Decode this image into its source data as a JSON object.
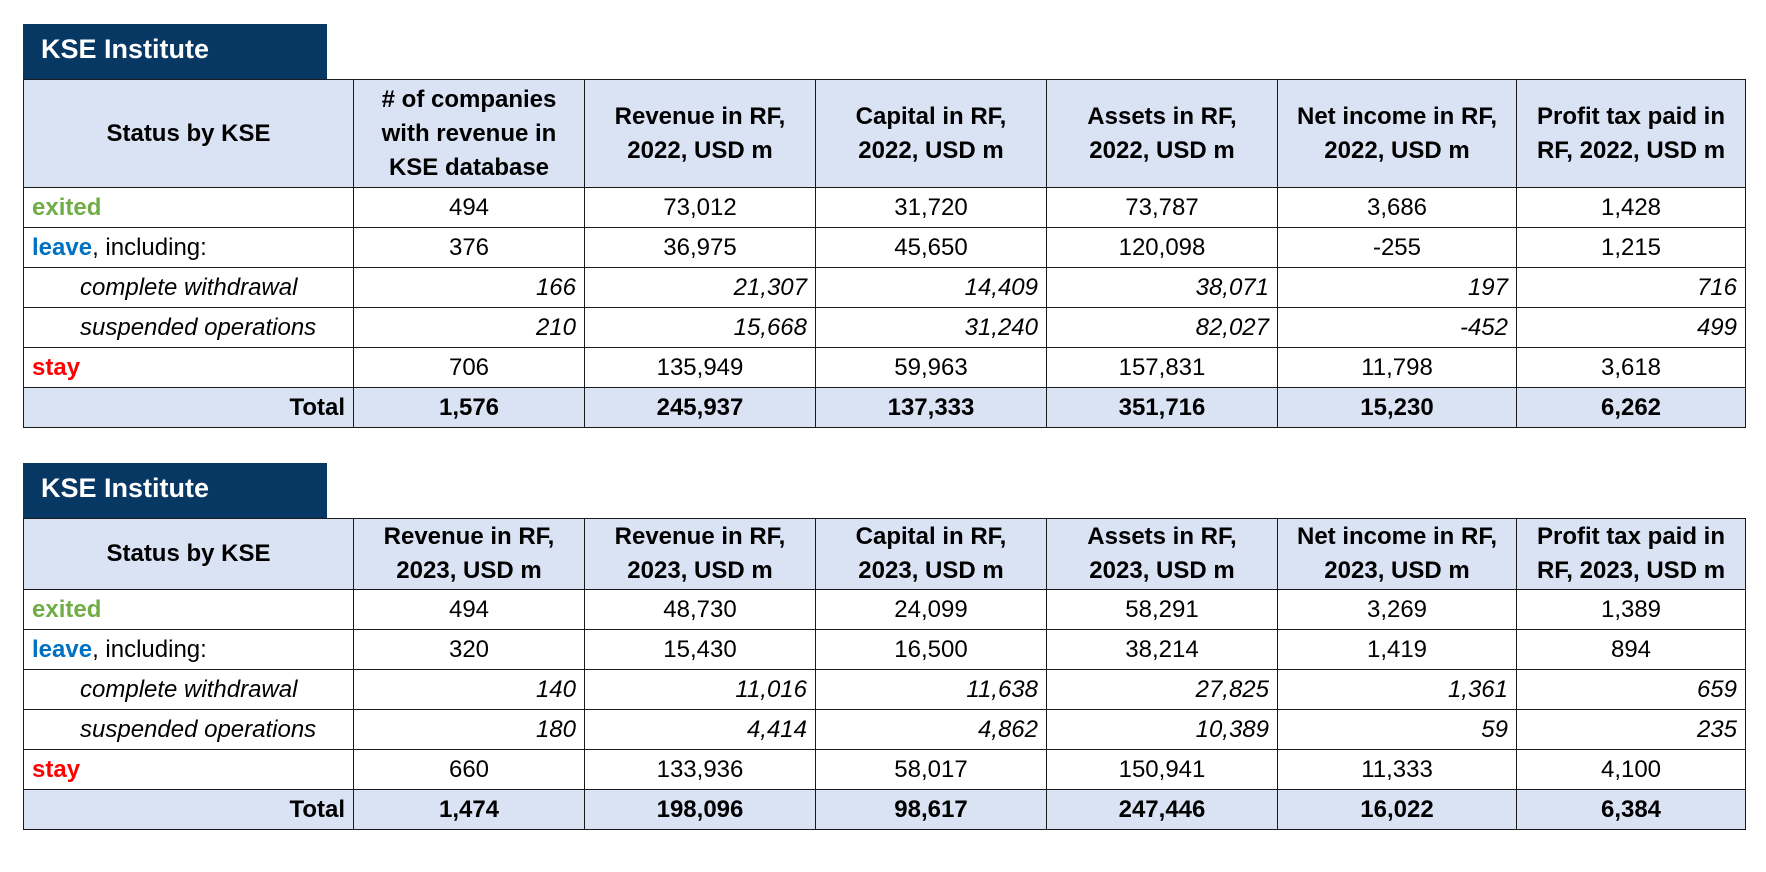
{
  "badge_label": "KSE Institute",
  "table_2022": {
    "headers": [
      "Status by KSE",
      "# of companies with revenue in KSE database",
      "Revenue in RF, 2022, USD m",
      "Capital in RF, 2022, USD m",
      "Assets in RF, 2022, USD m",
      "Net income in RF, 2022, USD m",
      "Profit tax paid in RF, 2022, USD m"
    ],
    "rows": [
      {
        "status": "exited",
        "suffix": "",
        "values": [
          "494",
          "73,012",
          "31,720",
          "73,787",
          "3,686",
          "1,428"
        ]
      },
      {
        "status": "leave",
        "suffix": ", including:",
        "values": [
          "376",
          "36,975",
          "45,650",
          "120,098",
          "-255",
          "1,215"
        ]
      },
      {
        "status": "complete withdrawal",
        "values": [
          "166",
          "21,307",
          "14,409",
          "38,071",
          "197",
          "716"
        ]
      },
      {
        "status": "suspended operations",
        "values": [
          "210",
          "15,668",
          "31,240",
          "82,027",
          "-452",
          "499"
        ]
      },
      {
        "status": "stay",
        "suffix": "",
        "values": [
          "706",
          "135,949",
          "59,963",
          "157,831",
          "11,798",
          "3,618"
        ]
      },
      {
        "status": "Total",
        "values": [
          "1,576",
          "245,937",
          "137,333",
          "351,716",
          "15,230",
          "6,262"
        ]
      }
    ]
  },
  "table_2023": {
    "headers": [
      "Status by KSE",
      "Revenue in RF, 2023, USD m",
      "Revenue in RF, 2023, USD m",
      "Capital in RF, 2023, USD m",
      "Assets in RF, 2023, USD m",
      "Net income in RF, 2023, USD m",
      "Profit tax paid in RF, 2023, USD m"
    ],
    "rows": [
      {
        "status": "exited",
        "suffix": "",
        "values": [
          "494",
          "48,730",
          "24,099",
          "58,291",
          "3,269",
          "1,389"
        ]
      },
      {
        "status": "leave",
        "suffix": ", including:",
        "values": [
          "320",
          "15,430",
          "16,500",
          "38,214",
          "1,419",
          "894"
        ]
      },
      {
        "status": "complete withdrawal",
        "values": [
          "140",
          "11,016",
          "11,638",
          "27,825",
          "1,361",
          "659"
        ]
      },
      {
        "status": "suspended operations",
        "values": [
          "180",
          "4,414",
          "4,862",
          "10,389",
          "59",
          "235"
        ]
      },
      {
        "status": "stay",
        "suffix": "",
        "values": [
          "660",
          "133,936",
          "58,017",
          "150,941",
          "11,333",
          "4,100"
        ]
      },
      {
        "status": "Total",
        "values": [
          "1,474",
          "198,096",
          "98,617",
          "247,446",
          "16,022",
          "6,384"
        ]
      }
    ]
  },
  "colors": {
    "badge": "#073763",
    "header_fill": "#dae3f3",
    "exited": "#70ad47",
    "leave": "#0070c0",
    "stay": "#ff0000"
  }
}
